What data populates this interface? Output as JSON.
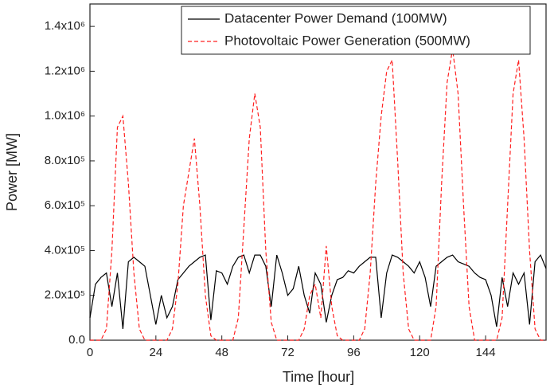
{
  "chart_data": {
    "type": "line",
    "xlabel": "Time [hour]",
    "ylabel": "Power [MW]",
    "x": [
      0,
      2,
      4,
      6,
      8,
      10,
      12,
      14,
      16,
      18,
      20,
      22,
      24,
      26,
      28,
      30,
      32,
      34,
      36,
      38,
      40,
      42,
      44,
      46,
      48,
      50,
      52,
      54,
      56,
      58,
      60,
      62,
      64,
      66,
      68,
      70,
      72,
      74,
      76,
      78,
      80,
      82,
      84,
      86,
      88,
      90,
      92,
      94,
      96,
      98,
      100,
      102,
      104,
      106,
      108,
      110,
      112,
      114,
      116,
      118,
      120,
      122,
      124,
      126,
      128,
      130,
      132,
      134,
      136,
      138,
      140,
      142,
      144,
      146,
      148,
      150,
      152,
      154,
      156,
      158,
      160,
      162,
      164,
      166
    ],
    "series": [
      {
        "name": "Datacenter Power Demand (100MW)",
        "color": "#000000",
        "dash": false,
        "values": [
          100000,
          250000,
          280000,
          300000,
          150000,
          300000,
          50000,
          350000,
          370000,
          350000,
          330000,
          200000,
          70000,
          200000,
          100000,
          150000,
          270000,
          300000,
          330000,
          350000,
          370000,
          380000,
          90000,
          310000,
          300000,
          250000,
          330000,
          370000,
          380000,
          300000,
          380000,
          380000,
          330000,
          150000,
          380000,
          300000,
          200000,
          230000,
          330000,
          200000,
          120000,
          300000,
          250000,
          80000,
          200000,
          270000,
          280000,
          310000,
          300000,
          330000,
          350000,
          370000,
          370000,
          100000,
          300000,
          380000,
          370000,
          350000,
          330000,
          300000,
          350000,
          280000,
          150000,
          330000,
          350000,
          370000,
          380000,
          350000,
          340000,
          330000,
          300000,
          280000,
          270000,
          200000,
          60000,
          280000,
          150000,
          300000,
          250000,
          300000,
          70000,
          350000,
          380000,
          320000
        ]
      },
      {
        "name": "Photovoltaic Power Generation (500MW)",
        "color": "#ff2020",
        "dash": true,
        "values": [
          0,
          0,
          0,
          50000,
          400000,
          950000,
          1000000,
          700000,
          300000,
          50000,
          0,
          0,
          0,
          0,
          0,
          50000,
          250000,
          600000,
          750000,
          900000,
          600000,
          200000,
          20000,
          0,
          0,
          0,
          0,
          100000,
          500000,
          900000,
          1100000,
          950000,
          400000,
          80000,
          0,
          0,
          0,
          0,
          0,
          50000,
          200000,
          250000,
          100000,
          420000,
          150000,
          20000,
          0,
          0,
          0,
          0,
          50000,
          300000,
          700000,
          1000000,
          1200000,
          1250000,
          800000,
          300000,
          50000,
          0,
          0,
          0,
          0,
          150000,
          700000,
          1150000,
          1300000,
          1100000,
          600000,
          150000,
          0,
          0,
          0,
          0,
          0,
          100000,
          600000,
          1100000,
          1250000,
          900000,
          400000,
          50000,
          0,
          0
        ]
      }
    ],
    "xlim": [
      0,
      166
    ],
    "xticks": [
      0,
      24,
      48,
      72,
      96,
      120,
      144
    ],
    "ylim": [
      0,
      1500000
    ],
    "yticks": [
      {
        "value": 0,
        "label": "0.0"
      },
      {
        "value": 200000,
        "label": "2.0x10⁵"
      },
      {
        "value": 400000,
        "label": "4.0x10⁵"
      },
      {
        "value": 600000,
        "label": "6.0x10⁵"
      },
      {
        "value": 800000,
        "label": "8.0x10⁵"
      },
      {
        "value": 1000000,
        "label": "1.0x10⁶"
      },
      {
        "value": 1200000,
        "label": "1.2x10⁶"
      },
      {
        "value": 1400000,
        "label": "1.4x10⁶"
      }
    ],
    "legend": "upper right",
    "grid": false
  }
}
